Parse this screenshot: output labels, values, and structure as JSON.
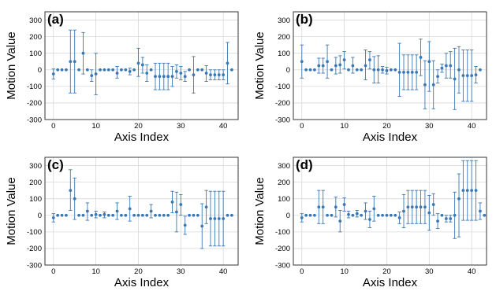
{
  "chart_data": [
    {
      "type": "scatter",
      "panel_label": "(a)",
      "xlabel": "Axis Index",
      "ylabel": "Motion Value",
      "xlim": [
        -2,
        43.5
      ],
      "ylim": [
        -300,
        350
      ],
      "xticks": [
        0,
        10,
        20,
        30,
        40
      ],
      "yticks": [
        -300,
        -200,
        -100,
        0,
        100,
        200,
        300
      ],
      "color": "#3a78b5",
      "grid": true,
      "points": [
        {
          "x": 0,
          "y": -25,
          "lo": -55,
          "hi": 5
        },
        {
          "x": 1,
          "y": 0,
          "lo": 0,
          "hi": 0
        },
        {
          "x": 2,
          "y": 0,
          "lo": 0,
          "hi": 0
        },
        {
          "x": 3,
          "y": 0,
          "lo": 0,
          "hi": 0
        },
        {
          "x": 4,
          "y": 50,
          "lo": -140,
          "hi": 240
        },
        {
          "x": 5,
          "y": 50,
          "lo": -140,
          "hi": 240
        },
        {
          "x": 6,
          "y": 0,
          "lo": 0,
          "hi": 0
        },
        {
          "x": 7,
          "y": 100,
          "lo": -25,
          "hi": 225
        },
        {
          "x": 8,
          "y": 0,
          "lo": 0,
          "hi": 0
        },
        {
          "x": 9,
          "y": -35,
          "lo": -70,
          "hi": 0
        },
        {
          "x": 10,
          "y": -25,
          "lo": -150,
          "hi": 100
        },
        {
          "x": 11,
          "y": 0,
          "lo": 0,
          "hi": 0
        },
        {
          "x": 12,
          "y": 0,
          "lo": 0,
          "hi": 0
        },
        {
          "x": 13,
          "y": 0,
          "lo": 0,
          "hi": 0
        },
        {
          "x": 14,
          "y": 0,
          "lo": 0,
          "hi": 0
        },
        {
          "x": 15,
          "y": -20,
          "lo": -50,
          "hi": 20
        },
        {
          "x": 16,
          "y": 0,
          "lo": 0,
          "hi": 0
        },
        {
          "x": 17,
          "y": 0,
          "lo": 0,
          "hi": 0
        },
        {
          "x": 18,
          "y": -10,
          "lo": -30,
          "hi": 10
        },
        {
          "x": 19,
          "y": 0,
          "lo": 0,
          "hi": 0
        },
        {
          "x": 20,
          "y": 40,
          "lo": -40,
          "hi": 130
        },
        {
          "x": 21,
          "y": 30,
          "lo": -20,
          "hi": 75
        },
        {
          "x": 22,
          "y": -20,
          "lo": -70,
          "hi": 30
        },
        {
          "x": 23,
          "y": 0,
          "lo": 0,
          "hi": 0
        },
        {
          "x": 24,
          "y": -40,
          "lo": -120,
          "hi": 40
        },
        {
          "x": 25,
          "y": -40,
          "lo": -120,
          "hi": 40
        },
        {
          "x": 26,
          "y": -40,
          "lo": -120,
          "hi": 40
        },
        {
          "x": 27,
          "y": -40,
          "lo": -120,
          "hi": 40
        },
        {
          "x": 28,
          "y": -40,
          "lo": -100,
          "hi": 20
        },
        {
          "x": 29,
          "y": -10,
          "lo": -50,
          "hi": 30
        },
        {
          "x": 30,
          "y": -20,
          "lo": -60,
          "hi": 20
        },
        {
          "x": 31,
          "y": -40,
          "lo": -70,
          "hi": -10
        },
        {
          "x": 32,
          "y": 0,
          "lo": 0,
          "hi": 0
        },
        {
          "x": 33,
          "y": -30,
          "lo": -140,
          "hi": 80
        },
        {
          "x": 34,
          "y": 0,
          "lo": 0,
          "hi": 0
        },
        {
          "x": 35,
          "y": 0,
          "lo": 0,
          "hi": 0
        },
        {
          "x": 36,
          "y": -20,
          "lo": -70,
          "hi": 25
        },
        {
          "x": 37,
          "y": -30,
          "lo": -60,
          "hi": 0
        },
        {
          "x": 38,
          "y": -30,
          "lo": -60,
          "hi": 0
        },
        {
          "x": 39,
          "y": -30,
          "lo": -60,
          "hi": 0
        },
        {
          "x": 40,
          "y": -30,
          "lo": -60,
          "hi": 0
        },
        {
          "x": 41,
          "y": 40,
          "lo": -85,
          "hi": 165
        },
        {
          "x": 42,
          "y": 0,
          "lo": 0,
          "hi": 0
        }
      ]
    },
    {
      "type": "scatter",
      "panel_label": "(b)",
      "xlabel": "Axis Index",
      "ylabel": "Motion Value",
      "xlim": [
        -2,
        43.5
      ],
      "ylim": [
        -300,
        350
      ],
      "xticks": [
        0,
        10,
        20,
        30,
        40
      ],
      "yticks": [
        -300,
        -200,
        -100,
        0,
        100,
        200,
        300
      ],
      "color": "#3a78b5",
      "grid": true,
      "points": [
        {
          "x": 0,
          "y": 50,
          "lo": -50,
          "hi": 150
        },
        {
          "x": 1,
          "y": 0,
          "lo": 0,
          "hi": 0
        },
        {
          "x": 2,
          "y": 0,
          "lo": 0,
          "hi": 0
        },
        {
          "x": 3,
          "y": 0,
          "lo": 0,
          "hi": 0
        },
        {
          "x": 4,
          "y": 25,
          "lo": -20,
          "hi": 70
        },
        {
          "x": 5,
          "y": 25,
          "lo": -20,
          "hi": 70
        },
        {
          "x": 6,
          "y": 50,
          "lo": -50,
          "hi": 150
        },
        {
          "x": 7,
          "y": 0,
          "lo": 0,
          "hi": 0
        },
        {
          "x": 8,
          "y": 25,
          "lo": -25,
          "hi": 75
        },
        {
          "x": 9,
          "y": 30,
          "lo": -20,
          "hi": 85
        },
        {
          "x": 10,
          "y": 60,
          "lo": 5,
          "hi": 110
        },
        {
          "x": 11,
          "y": 0,
          "lo": 0,
          "hi": 0
        },
        {
          "x": 12,
          "y": 25,
          "lo": -20,
          "hi": 75
        },
        {
          "x": 13,
          "y": 0,
          "lo": 0,
          "hi": 0
        },
        {
          "x": 14,
          "y": 0,
          "lo": 0,
          "hi": 0
        },
        {
          "x": 15,
          "y": 25,
          "lo": -60,
          "hi": 120
        },
        {
          "x": 16,
          "y": 60,
          "lo": 5,
          "hi": 110
        },
        {
          "x": 17,
          "y": 0,
          "lo": -80,
          "hi": 80
        },
        {
          "x": 18,
          "y": 0,
          "lo": -80,
          "hi": 85
        },
        {
          "x": 19,
          "y": 0,
          "lo": -20,
          "hi": 20
        },
        {
          "x": 20,
          "y": -5,
          "lo": -25,
          "hi": 15
        },
        {
          "x": 21,
          "y": 0,
          "lo": 0,
          "hi": 0
        },
        {
          "x": 22,
          "y": 0,
          "lo": 0,
          "hi": 0
        },
        {
          "x": 23,
          "y": -15,
          "lo": -160,
          "hi": 160
        },
        {
          "x": 24,
          "y": -15,
          "lo": -120,
          "hi": 90
        },
        {
          "x": 25,
          "y": -15,
          "lo": -120,
          "hi": 90
        },
        {
          "x": 26,
          "y": -15,
          "lo": -120,
          "hi": 90
        },
        {
          "x": 27,
          "y": -15,
          "lo": -120,
          "hi": 90
        },
        {
          "x": 28,
          "y": 75,
          "lo": -35,
          "hi": 185
        },
        {
          "x": 29,
          "y": -90,
          "lo": -235,
          "hi": 55
        },
        {
          "x": 30,
          "y": 50,
          "lo": -130,
          "hi": 170
        },
        {
          "x": 31,
          "y": -90,
          "lo": -235,
          "hi": 55
        },
        {
          "x": 32,
          "y": -40,
          "lo": -80,
          "hi": 0
        },
        {
          "x": 33,
          "y": 10,
          "lo": -15,
          "hi": 35
        },
        {
          "x": 34,
          "y": 25,
          "lo": -50,
          "hi": 100
        },
        {
          "x": 35,
          "y": 25,
          "lo": -50,
          "hi": 110
        },
        {
          "x": 36,
          "y": -55,
          "lo": -240,
          "hi": 130
        },
        {
          "x": 37,
          "y": 0,
          "lo": -140,
          "hi": 140
        },
        {
          "x": 38,
          "y": -35,
          "lo": -190,
          "hi": 120
        },
        {
          "x": 39,
          "y": -35,
          "lo": -190,
          "hi": 120
        },
        {
          "x": 40,
          "y": -35,
          "lo": -190,
          "hi": 120
        },
        {
          "x": 41,
          "y": -30,
          "lo": -80,
          "hi": 20
        },
        {
          "x": 42,
          "y": 0,
          "lo": 0,
          "hi": 0
        }
      ]
    },
    {
      "type": "scatter",
      "panel_label": "(c)",
      "xlabel": "Axis Index",
      "ylabel": "Motion Value",
      "xlim": [
        -2,
        43.5
      ],
      "ylim": [
        -300,
        350
      ],
      "xticks": [
        0,
        10,
        20,
        30,
        40
      ],
      "yticks": [
        -300,
        -200,
        -100,
        0,
        100,
        200,
        300
      ],
      "color": "#3a78b5",
      "grid": true,
      "points": [
        {
          "x": 0,
          "y": -15,
          "lo": -40,
          "hi": 10
        },
        {
          "x": 1,
          "y": 0,
          "lo": 0,
          "hi": 0
        },
        {
          "x": 2,
          "y": 0,
          "lo": 0,
          "hi": 0
        },
        {
          "x": 3,
          "y": 0,
          "lo": 0,
          "hi": 0
        },
        {
          "x": 4,
          "y": 150,
          "lo": 30,
          "hi": 275
        },
        {
          "x": 5,
          "y": 100,
          "lo": -25,
          "hi": 225
        },
        {
          "x": 6,
          "y": 0,
          "lo": 0,
          "hi": 0
        },
        {
          "x": 7,
          "y": 0,
          "lo": 0,
          "hi": 0
        },
        {
          "x": 8,
          "y": 25,
          "lo": -30,
          "hi": 75
        },
        {
          "x": 9,
          "y": 0,
          "lo": 0,
          "hi": 0
        },
        {
          "x": 10,
          "y": 5,
          "lo": -15,
          "hi": 25
        },
        {
          "x": 11,
          "y": 0,
          "lo": 0,
          "hi": 0
        },
        {
          "x": 12,
          "y": 5,
          "lo": -15,
          "hi": 20
        },
        {
          "x": 13,
          "y": 0,
          "lo": 0,
          "hi": 0
        },
        {
          "x": 14,
          "y": 0,
          "lo": 0,
          "hi": 0
        },
        {
          "x": 15,
          "y": 25,
          "lo": -25,
          "hi": 75
        },
        {
          "x": 16,
          "y": 0,
          "lo": 0,
          "hi": 0
        },
        {
          "x": 17,
          "y": 0,
          "lo": 0,
          "hi": 0
        },
        {
          "x": 18,
          "y": 40,
          "lo": -35,
          "hi": 115
        },
        {
          "x": 19,
          "y": 0,
          "lo": 0,
          "hi": 0
        },
        {
          "x": 20,
          "y": 0,
          "lo": 0,
          "hi": 0
        },
        {
          "x": 21,
          "y": 0,
          "lo": 0,
          "hi": 0
        },
        {
          "x": 22,
          "y": 0,
          "lo": 0,
          "hi": 0
        },
        {
          "x": 23,
          "y": 25,
          "lo": -15,
          "hi": 65
        },
        {
          "x": 24,
          "y": 0,
          "lo": 0,
          "hi": 0
        },
        {
          "x": 25,
          "y": 0,
          "lo": 0,
          "hi": 0
        },
        {
          "x": 26,
          "y": 0,
          "lo": 0,
          "hi": 0
        },
        {
          "x": 27,
          "y": 0,
          "lo": 0,
          "hi": 0
        },
        {
          "x": 28,
          "y": 80,
          "lo": 15,
          "hi": 145
        },
        {
          "x": 29,
          "y": 20,
          "lo": -100,
          "hi": 140
        },
        {
          "x": 30,
          "y": 65,
          "lo": 0,
          "hi": 125
        },
        {
          "x": 31,
          "y": -60,
          "lo": -115,
          "hi": -5
        },
        {
          "x": 32,
          "y": 0,
          "lo": 0,
          "hi": 0
        },
        {
          "x": 33,
          "y": 0,
          "lo": 0,
          "hi": 0
        },
        {
          "x": 34,
          "y": 0,
          "lo": 0,
          "hi": 0
        },
        {
          "x": 35,
          "y": -65,
          "lo": -200,
          "hi": 70
        },
        {
          "x": 36,
          "y": 50,
          "lo": -50,
          "hi": 150
        },
        {
          "x": 37,
          "y": -20,
          "lo": -185,
          "hi": 145
        },
        {
          "x": 38,
          "y": -20,
          "lo": -185,
          "hi": 145
        },
        {
          "x": 39,
          "y": -20,
          "lo": -185,
          "hi": 145
        },
        {
          "x": 40,
          "y": -20,
          "lo": -185,
          "hi": 145
        },
        {
          "x": 41,
          "y": 0,
          "lo": 0,
          "hi": 0
        },
        {
          "x": 42,
          "y": 0,
          "lo": 0,
          "hi": 0
        }
      ]
    },
    {
      "type": "scatter",
      "panel_label": "(d)",
      "xlabel": "Axis Index",
      "ylabel": "Motion Value",
      "xlim": [
        -2,
        43.5
      ],
      "ylim": [
        -300,
        350
      ],
      "xticks": [
        0,
        10,
        20,
        30,
        40
      ],
      "yticks": [
        -300,
        -200,
        -100,
        0,
        100,
        200,
        300
      ],
      "color": "#3a78b5",
      "grid": true,
      "points": [
        {
          "x": 0,
          "y": -15,
          "lo": -40,
          "hi": 10
        },
        {
          "x": 1,
          "y": 0,
          "lo": 0,
          "hi": 0
        },
        {
          "x": 2,
          "y": 0,
          "lo": 0,
          "hi": 0
        },
        {
          "x": 3,
          "y": 0,
          "lo": 0,
          "hi": 0
        },
        {
          "x": 4,
          "y": 50,
          "lo": -50,
          "hi": 150
        },
        {
          "x": 5,
          "y": 50,
          "lo": -50,
          "hi": 150
        },
        {
          "x": 6,
          "y": 0,
          "lo": 0,
          "hi": 0
        },
        {
          "x": 7,
          "y": 0,
          "lo": 0,
          "hi": 0
        },
        {
          "x": 8,
          "y": 50,
          "lo": -10,
          "hi": 110
        },
        {
          "x": 9,
          "y": -35,
          "lo": -100,
          "hi": 30
        },
        {
          "x": 10,
          "y": 65,
          "lo": 25,
          "hi": 105
        },
        {
          "x": 11,
          "y": 5,
          "lo": -15,
          "hi": 25
        },
        {
          "x": 12,
          "y": 0,
          "lo": 0,
          "hi": 0
        },
        {
          "x": 13,
          "y": 10,
          "lo": -10,
          "hi": 30
        },
        {
          "x": 14,
          "y": 0,
          "lo": 0,
          "hi": 0
        },
        {
          "x": 15,
          "y": 25,
          "lo": -25,
          "hi": 75
        },
        {
          "x": 16,
          "y": -25,
          "lo": -75,
          "hi": 25
        },
        {
          "x": 17,
          "y": 40,
          "lo": -35,
          "hi": 115
        },
        {
          "x": 18,
          "y": 0,
          "lo": 0,
          "hi": 0
        },
        {
          "x": 19,
          "y": 0,
          "lo": 0,
          "hi": 0
        },
        {
          "x": 20,
          "y": 0,
          "lo": 0,
          "hi": 0
        },
        {
          "x": 21,
          "y": 0,
          "lo": 0,
          "hi": 0
        },
        {
          "x": 22,
          "y": 0,
          "lo": 0,
          "hi": 0
        },
        {
          "x": 23,
          "y": -15,
          "lo": -50,
          "hi": 20
        },
        {
          "x": 24,
          "y": 25,
          "lo": -75,
          "hi": 125
        },
        {
          "x": 25,
          "y": 50,
          "lo": -50,
          "hi": 150
        },
        {
          "x": 26,
          "y": 50,
          "lo": -50,
          "hi": 150
        },
        {
          "x": 27,
          "y": 50,
          "lo": -50,
          "hi": 150
        },
        {
          "x": 28,
          "y": 50,
          "lo": -50,
          "hi": 150
        },
        {
          "x": 29,
          "y": 50,
          "lo": -50,
          "hi": 150
        },
        {
          "x": 30,
          "y": 15,
          "lo": -90,
          "hi": 120
        },
        {
          "x": 31,
          "y": 65,
          "lo": 0,
          "hi": 130
        },
        {
          "x": 32,
          "y": -35,
          "lo": -80,
          "hi": 10
        },
        {
          "x": 33,
          "y": 0,
          "lo": 0,
          "hi": 0
        },
        {
          "x": 34,
          "y": -20,
          "lo": -40,
          "hi": 0
        },
        {
          "x": 35,
          "y": -20,
          "lo": -40,
          "hi": 0
        },
        {
          "x": 36,
          "y": 0,
          "lo": -140,
          "hi": 140
        },
        {
          "x": 37,
          "y": 100,
          "lo": -130,
          "hi": 250
        },
        {
          "x": 38,
          "y": 150,
          "lo": -30,
          "hi": 330
        },
        {
          "x": 39,
          "y": 150,
          "lo": -30,
          "hi": 330
        },
        {
          "x": 40,
          "y": 150,
          "lo": -30,
          "hi": 330
        },
        {
          "x": 41,
          "y": 150,
          "lo": -30,
          "hi": 330
        },
        {
          "x": 42,
          "y": 25,
          "lo": -25,
          "hi": 75
        },
        {
          "x": 43,
          "y": 0,
          "lo": 0,
          "hi": 0
        }
      ]
    }
  ]
}
